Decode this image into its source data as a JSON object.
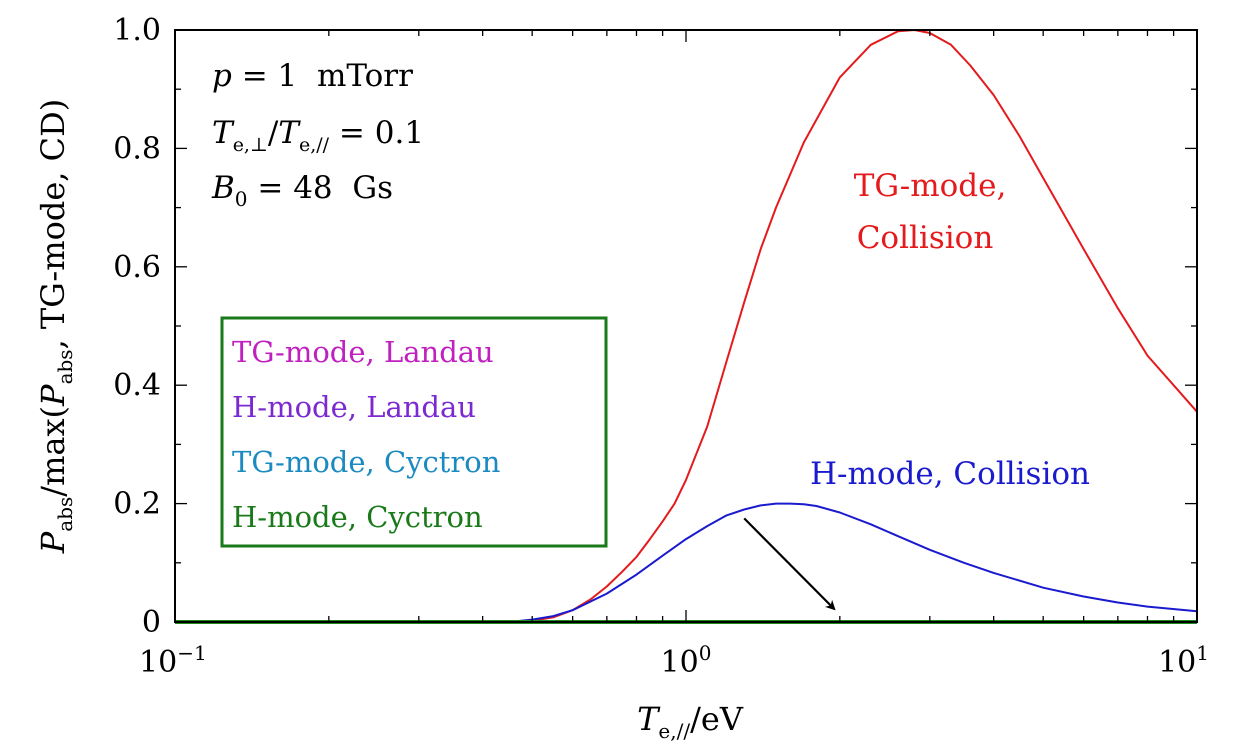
{
  "chart_data": {
    "type": "line",
    "xscale": "log",
    "xlim": [
      0.1,
      10
    ],
    "ylim": [
      0,
      1.0
    ],
    "grid": false,
    "xlabel": {
      "base": "T",
      "sub": "e,//",
      "rest": "/eV"
    },
    "ylabel": {
      "p1": "P",
      "p1sub": "abs",
      "mid": "/max(",
      "p2": "P",
      "p2sub": "abs",
      "end": ", TG-mode, CD)"
    },
    "xticks": [
      {
        "value": 0.1,
        "base": "10",
        "exp": "−1"
      },
      {
        "value": 1,
        "base": "10",
        "exp": "0"
      },
      {
        "value": 10,
        "base": "10",
        "exp": "1"
      }
    ],
    "yticks": [
      {
        "value": 0,
        "label": "0"
      },
      {
        "value": 0.2,
        "label": "0.2"
      },
      {
        "value": 0.4,
        "label": "0.4"
      },
      {
        "value": 0.6,
        "label": "0.6"
      },
      {
        "value": 0.8,
        "label": "0.8"
      },
      {
        "value": 1.0,
        "label": "1.0"
      }
    ],
    "annotations": {
      "line1": {
        "var": "p",
        "eq": " = 1  mTorr"
      },
      "line2": {
        "var1": "T",
        "sub1": "e,⊥",
        "slash": "/",
        "var2": "T",
        "sub2": "e,//",
        "eq": " = 0.1"
      },
      "line3": {
        "var": "B",
        "sub": "0",
        "eq": " = 48  Gs"
      }
    },
    "curve_labels": {
      "tg_collision": [
        "TG-mode,",
        "Collision"
      ],
      "h_collision": "H-mode, Collision"
    },
    "legend": {
      "placement": "center-left",
      "border_color": "#1a7a1a",
      "entries": [
        {
          "label": "TG-mode, Landau",
          "color": "#c020c0"
        },
        {
          "label": "H-mode, Landau",
          "color": "#7a2ad0"
        },
        {
          "label": "TG-mode, Cyctron",
          "color": "#1a8ac0"
        },
        {
          "label": "H-mode, Cyctron",
          "color": "#1a7a1a"
        }
      ]
    },
    "series": [
      {
        "name": "TG-mode, Collision",
        "color": "#e41a1c",
        "x": [
          0.1,
          0.4,
          0.5,
          0.55,
          0.6,
          0.65,
          0.7,
          0.75,
          0.8,
          0.85,
          0.9,
          0.95,
          1.0,
          1.1,
          1.2,
          1.3,
          1.4,
          1.5,
          1.7,
          2.0,
          2.3,
          2.6,
          2.8,
          3.0,
          3.3,
          3.6,
          4.0,
          4.5,
          5.0,
          6.0,
          7.0,
          8.0,
          9.0,
          10.0
        ],
        "y": [
          0,
          0,
          0.002,
          0.008,
          0.02,
          0.038,
          0.06,
          0.085,
          0.11,
          0.14,
          0.17,
          0.2,
          0.24,
          0.33,
          0.44,
          0.54,
          0.63,
          0.7,
          0.81,
          0.92,
          0.975,
          0.998,
          1.0,
          0.995,
          0.975,
          0.94,
          0.89,
          0.82,
          0.75,
          0.63,
          0.53,
          0.45,
          0.4,
          0.355
        ]
      },
      {
        "name": "H-mode, Collision",
        "color": "#1a1acf",
        "x": [
          0.1,
          0.45,
          0.5,
          0.55,
          0.6,
          0.7,
          0.8,
          0.9,
          1.0,
          1.1,
          1.2,
          1.3,
          1.4,
          1.5,
          1.6,
          1.7,
          1.8,
          2.0,
          2.3,
          2.6,
          3.0,
          3.5,
          4.0,
          5.0,
          6.0,
          7.0,
          8.0,
          10.0
        ],
        "y": [
          0,
          0,
          0.004,
          0.01,
          0.02,
          0.048,
          0.08,
          0.112,
          0.14,
          0.162,
          0.18,
          0.19,
          0.197,
          0.2,
          0.2,
          0.199,
          0.196,
          0.185,
          0.165,
          0.145,
          0.122,
          0.1,
          0.083,
          0.058,
          0.043,
          0.033,
          0.026,
          0.018
        ]
      },
      {
        "name": "Landau and Cyctron (overlapping)",
        "color": "#1a8a1a",
        "x": [
          0.1,
          10.0
        ],
        "y": [
          0,
          0
        ]
      }
    ],
    "arrow": {
      "from": [
        1.3,
        0.175
      ],
      "to": [
        1.95,
        0.022
      ]
    }
  }
}
